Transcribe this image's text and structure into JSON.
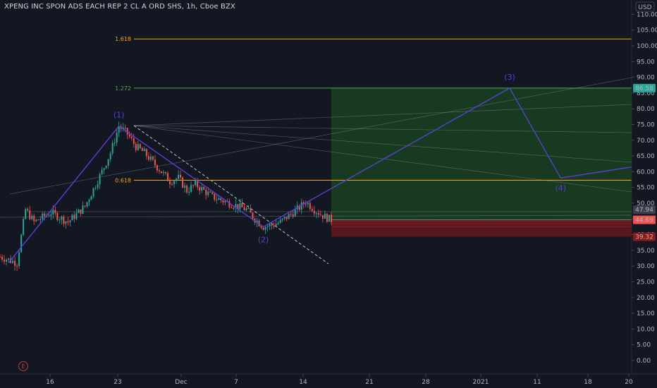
{
  "header": {
    "title": "XPENG INC SPON ADS EACH REP 2 CL A ORD SHS, 1h, Cboe BZX",
    "currency": "USD"
  },
  "events_icon": "E",
  "colors": {
    "background": "#131722",
    "up": "#26a69a",
    "down": "#ef5350",
    "wave": "#5b3fd6",
    "fib_orange": "#f7a21b",
    "fib_green": "#4caf50",
    "target_fill": "#1b5e20",
    "stop_fill": "#8b1a1a"
  },
  "chart_data": {
    "type": "candlestick",
    "y_axis": {
      "min": 0,
      "max": 110,
      "ticks": [
        0,
        5,
        10,
        15,
        20,
        25,
        30,
        35,
        40,
        45,
        50,
        55,
        60,
        65,
        70,
        75,
        80,
        85,
        90,
        95,
        100,
        105,
        110
      ],
      "tick_labels": [
        "0.00",
        "5.00",
        "10.00",
        "15.00",
        "20.00",
        "25.00",
        "30.00",
        "35.00",
        "40.00",
        "45.00",
        "50.00",
        "55.00",
        "60.00",
        "65.00",
        "70.00",
        "75.00",
        "80.00",
        "85.00",
        "90.00",
        "95.00",
        "100.00",
        "105.00",
        "110.00"
      ]
    },
    "x_axis": {
      "tick_labels": [
        "16",
        "23",
        "Dec",
        "7",
        "14",
        "21",
        "28",
        "2021",
        "11",
        "18",
        "20"
      ]
    },
    "price_path": [
      [
        "2020-11-10",
        33
      ],
      [
        "2020-11-12",
        31
      ],
      [
        "2020-11-13",
        48
      ],
      [
        "2020-11-14",
        44
      ],
      [
        "2020-11-16",
        47
      ],
      [
        "2020-11-18",
        44
      ],
      [
        "2020-11-20",
        49
      ],
      [
        "2020-11-22",
        60
      ],
      [
        "2020-11-23",
        66
      ],
      [
        "2020-11-24",
        74.5
      ],
      [
        "2020-11-25",
        72
      ],
      [
        "2020-11-26",
        68
      ],
      [
        "2020-11-27",
        66
      ],
      [
        "2020-11-29",
        60
      ],
      [
        "2020-11-30",
        57
      ],
      [
        "2020-12-01",
        58
      ],
      [
        "2020-12-02",
        54
      ],
      [
        "2020-12-03",
        56
      ],
      [
        "2020-12-05",
        52
      ],
      [
        "2020-12-07",
        50
      ],
      [
        "2020-12-09",
        48
      ],
      [
        "2020-12-10",
        45
      ],
      [
        "2020-12-11",
        42.5
      ],
      [
        "2020-12-12",
        43
      ],
      [
        "2020-12-13",
        44
      ],
      [
        "2020-12-14",
        46
      ],
      [
        "2020-12-15",
        48
      ],
      [
        "2020-12-16",
        50.5
      ],
      [
        "2020-12-17",
        48
      ],
      [
        "2020-12-18",
        46
      ],
      [
        "2020-12-19",
        44.7
      ]
    ],
    "price_labels": [
      {
        "value": 86.58,
        "text": "86.58",
        "color": "#26a69a"
      },
      {
        "value": 47.94,
        "text": "47.94",
        "color": "#3a3f4b"
      },
      {
        "value": 44.69,
        "text": "44.69",
        "color": "#ef5350"
      },
      {
        "value": 39.32,
        "text": "39.32",
        "color": "#8b1a1a"
      }
    ],
    "fib_levels": [
      {
        "label": "1.618",
        "value": 102.2,
        "color": "#f7a21b"
      },
      {
        "label": "1.272",
        "value": 86.58,
        "color": "#4caf50"
      },
      {
        "label": "0.618",
        "value": 57.3,
        "color": "#f7a21b"
      }
    ],
    "wave_labels": [
      "(1)",
      "(2)",
      "(3)",
      "(4)"
    ],
    "wave_points": [
      [
        "2020-11-11",
        31
      ],
      [
        "2020-11-24",
        74.5
      ],
      [
        "2020-12-11",
        42.5
      ],
      [
        "2021-01-09",
        86.58
      ],
      [
        "2021-01-15",
        58
      ],
      [
        "2021-01-20",
        63
      ]
    ],
    "position": {
      "start": "2020-12-19",
      "end": "2021-01-20",
      "entry": 44.69,
      "target": 86.58,
      "stop": 39.32
    }
  }
}
